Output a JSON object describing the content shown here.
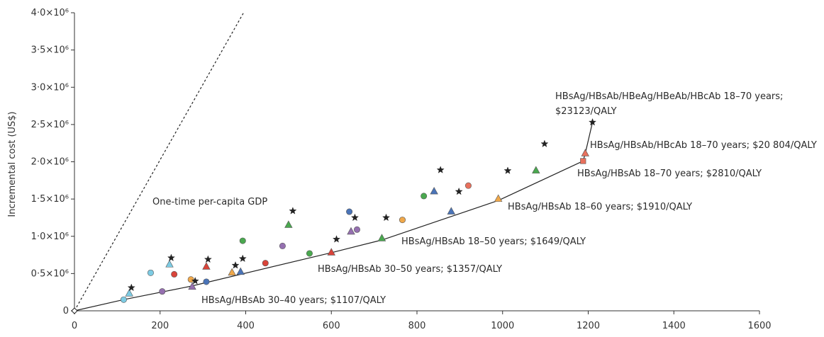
{
  "chart_data": {
    "type": "scatter",
    "title": "",
    "xlabel": "",
    "ylabel": "Incremental cost (US$)",
    "xlim": [
      0,
      1600
    ],
    "ylim": [
      0,
      4000000
    ],
    "x_ticks": [
      0,
      200,
      400,
      600,
      800,
      1000,
      1200,
      1400,
      1600
    ],
    "x_tick_labels": [
      "0",
      "200",
      "400",
      "600",
      "800",
      "1000",
      "1200",
      "1400",
      "1600"
    ],
    "y_ticks": [
      0,
      500000,
      1000000,
      1500000,
      2000000,
      2500000,
      3000000,
      3500000,
      4000000
    ],
    "y_tick_labels": [
      "0",
      "0·5×10⁶",
      "1·0×10⁶",
      "1·5×10⁶",
      "2·0×10⁶",
      "2·5×10⁶",
      "3·0×10⁶",
      "3·5×10⁶",
      "4·0×10⁶"
    ],
    "grid": false,
    "colors": {
      "cyan": "#7dcbe3",
      "red": "#d9443a",
      "salmon": "#e8705c",
      "green": "#4aa84f",
      "purple": "#9570b0",
      "blue": "#4a74b8",
      "orange": "#f0a84a",
      "black": "#222222"
    },
    "gdp_line": {
      "label": "One-time per-capita GDP",
      "points": [
        [
          0,
          0
        ],
        [
          395,
          4000000
        ]
      ]
    },
    "frontier": {
      "points": [
        [
          0,
          0
        ],
        [
          115,
          150000
        ],
        [
          272,
          330000
        ],
        [
          600,
          780000
        ],
        [
          718,
          950000
        ],
        [
          990,
          1480000
        ],
        [
          1188,
          2010000
        ],
        [
          1193,
          2110000
        ],
        [
          1210,
          2530000
        ]
      ]
    },
    "points": [
      {
        "x": 115,
        "y": 150000,
        "shape": "circle",
        "color": "cyan"
      },
      {
        "x": 128,
        "y": 230000,
        "shape": "triangle",
        "color": "cyan"
      },
      {
        "x": 133,
        "y": 310000,
        "shape": "star",
        "color": "black"
      },
      {
        "x": 178,
        "y": 510000,
        "shape": "circle",
        "color": "cyan"
      },
      {
        "x": 205,
        "y": 260000,
        "shape": "circle",
        "color": "purple"
      },
      {
        "x": 222,
        "y": 620000,
        "shape": "triangle",
        "color": "cyan"
      },
      {
        "x": 226,
        "y": 710000,
        "shape": "star",
        "color": "black"
      },
      {
        "x": 233,
        "y": 490000,
        "shape": "circle",
        "color": "red"
      },
      {
        "x": 272,
        "y": 420000,
        "shape": "circle",
        "color": "orange"
      },
      {
        "x": 275,
        "y": 320000,
        "shape": "triangle",
        "color": "purple"
      },
      {
        "x": 282,
        "y": 400000,
        "shape": "star",
        "color": "black"
      },
      {
        "x": 308,
        "y": 590000,
        "shape": "triangle",
        "color": "red"
      },
      {
        "x": 312,
        "y": 690000,
        "shape": "star",
        "color": "black"
      },
      {
        "x": 308,
        "y": 390000,
        "shape": "circle",
        "color": "blue"
      },
      {
        "x": 368,
        "y": 510000,
        "shape": "triangle",
        "color": "orange"
      },
      {
        "x": 376,
        "y": 610000,
        "shape": "star",
        "color": "black"
      },
      {
        "x": 388,
        "y": 520000,
        "shape": "triangle",
        "color": "blue"
      },
      {
        "x": 393,
        "y": 700000,
        "shape": "star",
        "color": "black"
      },
      {
        "x": 393,
        "y": 940000,
        "shape": "circle",
        "color": "green"
      },
      {
        "x": 446,
        "y": 640000,
        "shape": "circle",
        "color": "red"
      },
      {
        "x": 486,
        "y": 870000,
        "shape": "circle",
        "color": "purple"
      },
      {
        "x": 500,
        "y": 1150000,
        "shape": "triangle",
        "color": "green"
      },
      {
        "x": 510,
        "y": 1340000,
        "shape": "star",
        "color": "black"
      },
      {
        "x": 549,
        "y": 770000,
        "shape": "circle",
        "color": "green"
      },
      {
        "x": 600,
        "y": 780000,
        "shape": "triangle",
        "color": "red"
      },
      {
        "x": 612,
        "y": 960000,
        "shape": "star",
        "color": "black"
      },
      {
        "x": 642,
        "y": 1330000,
        "shape": "circle",
        "color": "blue"
      },
      {
        "x": 646,
        "y": 1060000,
        "shape": "triangle",
        "color": "purple"
      },
      {
        "x": 655,
        "y": 1250000,
        "shape": "star",
        "color": "black"
      },
      {
        "x": 660,
        "y": 1090000,
        "shape": "circle",
        "color": "purple"
      },
      {
        "x": 718,
        "y": 970000,
        "shape": "triangle",
        "color": "green"
      },
      {
        "x": 728,
        "y": 1250000,
        "shape": "star",
        "color": "black"
      },
      {
        "x": 766,
        "y": 1220000,
        "shape": "circle",
        "color": "orange"
      },
      {
        "x": 816,
        "y": 1540000,
        "shape": "circle",
        "color": "green"
      },
      {
        "x": 840,
        "y": 1600000,
        "shape": "triangle",
        "color": "blue"
      },
      {
        "x": 855,
        "y": 1890000,
        "shape": "star",
        "color": "black"
      },
      {
        "x": 880,
        "y": 1330000,
        "shape": "triangle",
        "color": "blue"
      },
      {
        "x": 898,
        "y": 1600000,
        "shape": "star",
        "color": "black"
      },
      {
        "x": 920,
        "y": 1680000,
        "shape": "circle",
        "color": "salmon"
      },
      {
        "x": 990,
        "y": 1500000,
        "shape": "triangle",
        "color": "orange"
      },
      {
        "x": 1012,
        "y": 1880000,
        "shape": "star",
        "color": "black"
      },
      {
        "x": 1078,
        "y": 1880000,
        "shape": "triangle",
        "color": "green"
      },
      {
        "x": 1098,
        "y": 2240000,
        "shape": "star",
        "color": "black"
      },
      {
        "x": 1188,
        "y": 2010000,
        "shape": "square",
        "color": "salmon"
      },
      {
        "x": 1193,
        "y": 2110000,
        "shape": "triangle",
        "color": "salmon"
      },
      {
        "x": 1210,
        "y": 2530000,
        "shape": "star",
        "color": "black"
      }
    ],
    "annotations": [
      {
        "id": "ann-hbsag-hbsab-30-40",
        "text": "HBsAg/HBsAb 30–40 years; $1107/QALY"
      },
      {
        "id": "ann-hbsag-hbsab-30-50",
        "text": "HBsAg/HBsAb 30–50 years; $1357/QALY"
      },
      {
        "id": "ann-hbsag-hbsab-18-50",
        "text": "HBsAg/HBsAb 18–50 years; $1649/QALY"
      },
      {
        "id": "ann-hbsag-hbsab-18-60",
        "text": "HBsAg/HBsAb 18–60 years; $1910/QALY"
      },
      {
        "id": "ann-hbsag-hbsab-18-70",
        "text": "HBsAg/HBsAb 18–70 years; $2810/QALY"
      },
      {
        "id": "ann-hbcab-18-70",
        "text": "HBsAg/HBsAb/HBcAb 18–70 years; $20 804/QALY"
      },
      {
        "id": "ann-hbeag-18-70-line1",
        "text": "HBsAg/HBsAb/HBeAg/HBeAb/HBcAb 18–70 years;"
      },
      {
        "id": "ann-hbeag-18-70-line2",
        "text": "$23123/QALY"
      }
    ]
  }
}
